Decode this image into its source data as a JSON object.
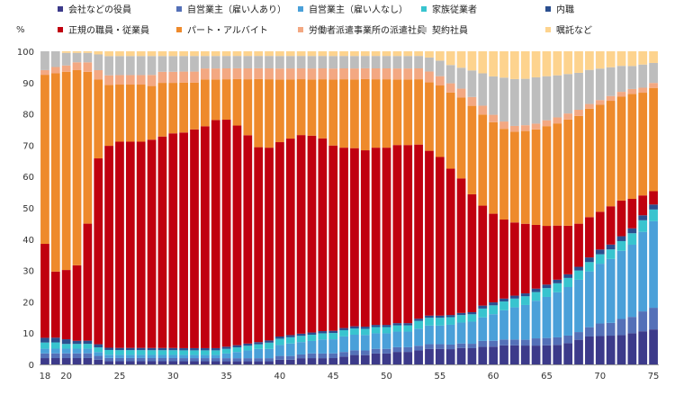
{
  "chart_data": {
    "type": "bar",
    "stacked": true,
    "normalized": true,
    "ylabel": "%",
    "ylim": [
      0,
      100
    ],
    "yticks": [
      0,
      10,
      20,
      30,
      40,
      50,
      60,
      70,
      80,
      90,
      100
    ],
    "xticks": [
      "18",
      "20",
      "25",
      "30",
      "35",
      "40",
      "45",
      "50",
      "55",
      "60",
      "65",
      "70",
      "75"
    ],
    "grid": false,
    "legend_position": "top",
    "age_start": 18,
    "age_end": 75,
    "series": [
      {
        "name": "会社などの役員",
        "color": "#3c3a8a",
        "values": [
          2,
          2,
          2,
          2,
          2,
          1.5,
          1,
          1,
          1,
          1,
          1,
          1,
          1,
          1,
          1,
          1,
          1,
          1,
          1,
          1,
          1,
          1,
          1.5,
          1.5,
          2,
          2,
          2,
          2,
          2.5,
          3,
          3,
          3.5,
          3.5,
          4,
          4,
          4.5,
          5,
          5,
          5,
          5.5,
          5.5,
          6,
          6,
          6.5,
          6.5,
          6.5,
          6.5,
          6.5,
          6.5,
          7,
          8,
          9,
          9,
          9,
          9,
          9.5,
          10,
          10.5
        ]
      },
      {
        "name": "自営業主（雇い人あり）",
        "color": "#5470b8",
        "values": [
          1.5,
          1.5,
          1.5,
          1.5,
          1.5,
          1.2,
          1,
          1,
          1,
          1,
          1,
          1,
          1,
          1,
          1,
          1,
          1,
          1,
          1,
          1,
          1,
          1,
          1.2,
          1.2,
          1.2,
          1.5,
          1.5,
          1.5,
          1.5,
          1.5,
          1.5,
          1.5,
          1.5,
          1.5,
          1.5,
          1.5,
          1.5,
          1.5,
          1.5,
          1.5,
          1.5,
          2,
          2,
          2,
          2,
          2,
          2.5,
          2.5,
          2.5,
          2.5,
          2.5,
          3,
          4,
          4,
          5,
          5,
          6,
          6.5
        ]
      },
      {
        "name": "自営業主（雇い人なし）",
        "color": "#4aa0d9",
        "values": [
          1.5,
          1.5,
          1.5,
          1.5,
          1.5,
          1.2,
          1,
          1,
          1,
          1,
          1,
          1,
          1,
          1,
          1,
          1,
          1,
          1.5,
          2,
          2.5,
          3,
          3,
          3.5,
          4,
          4,
          4,
          4.5,
          4.5,
          5,
          5,
          5,
          5,
          5,
          5,
          5,
          5.5,
          6,
          6,
          6.5,
          7,
          7.5,
          8,
          9,
          10,
          11,
          12,
          13,
          14,
          15,
          16,
          17,
          18,
          19,
          20,
          21,
          22,
          24,
          26
        ]
      },
      {
        "name": "家族従業者",
        "color": "#38c4cf",
        "values": [
          2,
          2,
          1.5,
          1.5,
          1.5,
          1.5,
          1.5,
          1.5,
          1.5,
          1.5,
          1.5,
          1.5,
          1.5,
          1.5,
          1.5,
          1.5,
          1.5,
          1.5,
          1.5,
          1.5,
          1.5,
          2,
          2,
          2,
          2,
          2,
          2,
          2,
          2,
          2,
          2,
          2,
          2,
          2,
          2,
          2.5,
          2.5,
          2.5,
          2.5,
          2.5,
          2.5,
          3,
          3,
          3,
          3,
          3,
          3,
          3,
          3,
          3,
          3,
          3,
          3,
          3,
          3,
          3.5,
          3.5,
          3.5
        ]
      },
      {
        "name": "内職",
        "color": "#2b4f8f",
        "values": [
          1.5,
          1.5,
          1.5,
          1,
          1,
          1,
          0.7,
          0.7,
          0.7,
          0.7,
          0.7,
          0.7,
          0.7,
          0.7,
          0.7,
          0.7,
          0.7,
          0.7,
          0.7,
          0.7,
          0.7,
          0.7,
          0.7,
          0.7,
          0.7,
          0.7,
          0.7,
          0.7,
          0.7,
          0.7,
          0.7,
          0.7,
          0.7,
          0.7,
          0.7,
          0.7,
          0.7,
          0.7,
          0.7,
          0.7,
          0.7,
          1,
          1,
          1,
          1,
          1,
          1.2,
          1.2,
          1.2,
          1.2,
          1.2,
          1.5,
          1.5,
          1.5,
          1.5,
          1.5,
          1.5,
          1.5
        ]
      },
      {
        "name": "正規の職員・従業員",
        "color": "#c0000f",
        "values": [
          30,
          21,
          22,
          24,
          37,
          59,
          63,
          65,
          65,
          65,
          66,
          67,
          68,
          69,
          70,
          71,
          73,
          73,
          71,
          67,
          63,
          62,
          62,
          63,
          64,
          63,
          62,
          59,
          58,
          57,
          57,
          57,
          57,
          57,
          57,
          56,
          53,
          51,
          48,
          45,
          40,
          34,
          30,
          27,
          25,
          24,
          22,
          20,
          18,
          16,
          14,
          13,
          12,
          12,
          11,
          9,
          6,
          4
        ]
      },
      {
        "name": "パート・アルバイト",
        "color": "#ee8a2c",
        "values": [
          54,
          63,
          63,
          62,
          48,
          25,
          19,
          18,
          18,
          18,
          17,
          17,
          16,
          16,
          15,
          15,
          13,
          13,
          15,
          18,
          22,
          22,
          20,
          19,
          18,
          18,
          19,
          21,
          22,
          22,
          23,
          22,
          22,
          21,
          21,
          21,
          22,
          23,
          25,
          27,
          30,
          31,
          31,
          31,
          31,
          32,
          33,
          34,
          34,
          35,
          35,
          35,
          34,
          33,
          32,
          32,
          31,
          31
        ]
      },
      {
        "name": "労働者派遣事業所の派遣社員",
        "color": "#f3a882",
        "values": [
          1.5,
          2,
          2,
          2.5,
          3,
          3,
          3,
          3,
          3,
          3,
          3.5,
          3.5,
          3.5,
          3.5,
          3.5,
          3.5,
          3.5,
          3.5,
          3.5,
          3.5,
          3.5,
          3.5,
          3.5,
          3.5,
          3.5,
          3.5,
          3.5,
          3.5,
          3.5,
          3.5,
          3.5,
          3.5,
          3.5,
          3.5,
          3.5,
          3.5,
          3.5,
          3,
          3,
          3,
          3,
          3,
          2.5,
          2.5,
          2,
          2,
          2,
          2,
          2,
          2,
          2,
          1.5,
          1.5,
          1.5,
          1.5,
          1.5,
          1.5,
          1.5
        ]
      },
      {
        "name": "契約社員",
        "color": "#bdbdbd",
        "values": [
          6,
          5,
          4,
          3,
          3,
          5,
          6,
          6,
          6,
          6,
          6,
          5,
          5,
          5,
          5,
          4,
          4,
          4,
          4,
          4,
          4,
          4,
          4,
          4,
          4,
          4,
          4,
          4,
          4,
          4,
          4,
          4,
          4,
          4,
          4,
          4,
          4.5,
          5,
          6,
          7,
          9,
          11,
          13,
          15,
          16,
          16,
          16,
          15,
          14,
          13,
          12,
          11,
          10,
          9,
          8,
          7,
          7,
          6
        ]
      },
      {
        "name": "嘱託など",
        "color": "#fdd38e",
        "values": [
          0,
          0,
          0.5,
          0.5,
          0.5,
          1,
          1.5,
          1.5,
          1.5,
          1.5,
          1.5,
          1.5,
          1.5,
          1.5,
          1.5,
          1.5,
          1.5,
          1.5,
          1.5,
          1.5,
          1.5,
          1.5,
          1.5,
          1.5,
          1.5,
          1.5,
          1.5,
          1.5,
          1.5,
          1.5,
          1.5,
          1.5,
          1.5,
          1.5,
          1.5,
          1.5,
          2,
          3,
          4.5,
          5.5,
          6.5,
          7.5,
          8.5,
          9,
          9.5,
          9.5,
          9,
          8.5,
          8,
          7.5,
          7,
          6,
          5.5,
          5,
          4.5,
          4.5,
          4,
          3.5
        ]
      }
    ]
  }
}
